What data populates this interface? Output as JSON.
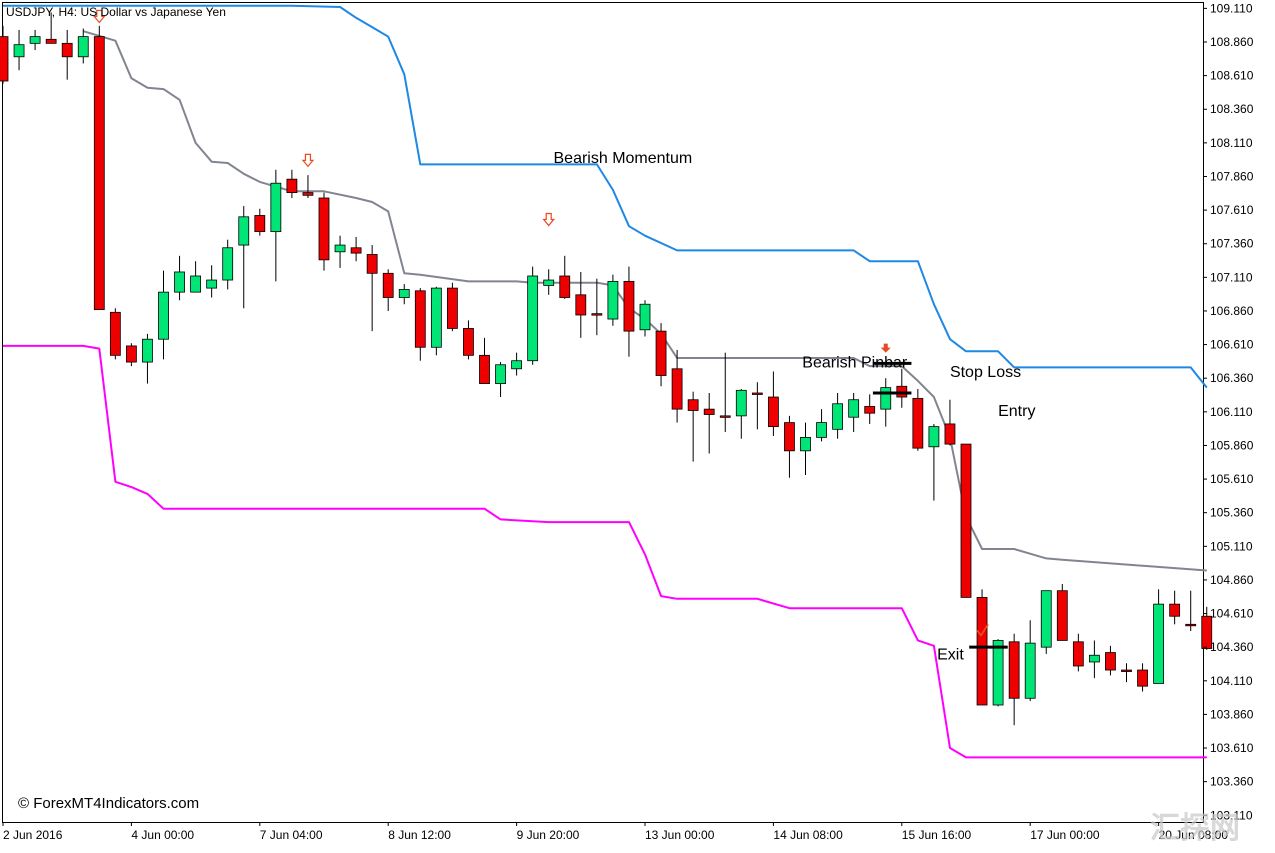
{
  "header": {
    "symbol_title": "USDJPY, H4:  US Dollar vs Japanese Yen"
  },
  "footer": {
    "copyright": "© ForexMT4Indicators.com",
    "watermark": "汇探网"
  },
  "colors": {
    "bull": "#00e676",
    "bear": "#ee0000",
    "outline": "#000000",
    "upper_band": "#1e88e5",
    "mid_band": "#808590",
    "lower_band": "#ff00ff",
    "signal_arrow": "#e8491d"
  },
  "chart_data": {
    "type": "candlestick",
    "symbol": "USDJPY",
    "timeframe": "H4",
    "y_ticks": [
      "109.110",
      "108.860",
      "108.610",
      "108.360",
      "108.110",
      "107.860",
      "107.610",
      "107.360",
      "107.110",
      "106.860",
      "106.610",
      "106.360",
      "106.110",
      "105.860",
      "105.610",
      "105.360",
      "105.110",
      "104.860",
      "104.610",
      "104.360",
      "104.110",
      "103.860",
      "103.610",
      "103.360",
      "103.110"
    ],
    "ylim": [
      103.06,
      109.15
    ],
    "x_ticks": [
      "2 Jun 2016",
      "4 Jun 00:00",
      "7 Jun 04:00",
      "8 Jun 12:00",
      "9 Jun 20:00",
      "13 Jun 00:00",
      "14 Jun 08:00",
      "15 Jun 16:00",
      "17 Jun 00:00",
      "20 Jun 08:00"
    ],
    "x_tick_bars": [
      0,
      8,
      16,
      24,
      32,
      40,
      48,
      56,
      64,
      72
    ],
    "candles": [
      [
        108.9,
        108.98,
        108.55,
        108.57
      ],
      [
        108.75,
        108.95,
        108.65,
        108.84
      ],
      [
        108.85,
        108.95,
        108.8,
        108.9
      ],
      [
        108.88,
        109.08,
        108.85,
        108.85
      ],
      [
        108.85,
        108.95,
        108.58,
        108.75
      ],
      [
        108.75,
        108.96,
        108.7,
        108.9
      ],
      [
        108.9,
        108.98,
        106.87,
        106.87
      ],
      [
        106.85,
        106.88,
        106.5,
        106.53
      ],
      [
        106.6,
        106.62,
        106.45,
        106.48
      ],
      [
        106.48,
        106.69,
        106.32,
        106.65
      ],
      [
        106.65,
        107.16,
        106.5,
        107.0
      ],
      [
        107.0,
        107.27,
        106.94,
        107.15
      ],
      [
        107.0,
        107.23,
        107.04,
        107.12
      ],
      [
        107.03,
        107.2,
        106.96,
        107.09
      ],
      [
        107.09,
        107.39,
        107.02,
        107.33
      ],
      [
        107.35,
        107.64,
        106.88,
        107.56
      ],
      [
        107.57,
        107.62,
        107.42,
        107.45
      ],
      [
        107.45,
        107.91,
        107.08,
        107.81
      ],
      [
        107.84,
        107.91,
        107.7,
        107.74
      ],
      [
        107.74,
        107.87,
        107.7,
        107.72
      ],
      [
        107.7,
        107.74,
        107.16,
        107.24
      ],
      [
        107.3,
        107.42,
        107.18,
        107.35
      ],
      [
        107.33,
        107.41,
        107.23,
        107.29
      ],
      [
        107.28,
        107.35,
        106.71,
        107.14
      ],
      [
        107.14,
        107.17,
        106.86,
        106.96
      ],
      [
        106.96,
        107.06,
        106.91,
        107.02
      ],
      [
        107.01,
        107.03,
        106.49,
        106.59
      ],
      [
        106.59,
        107.04,
        106.53,
        107.03
      ],
      [
        107.03,
        107.07,
        106.71,
        106.73
      ],
      [
        106.73,
        106.79,
        106.5,
        106.53
      ],
      [
        106.53,
        106.66,
        106.32,
        106.32
      ],
      [
        106.32,
        106.48,
        106.22,
        106.46
      ],
      [
        106.43,
        106.55,
        106.38,
        106.49
      ],
      [
        106.49,
        107.19,
        106.46,
        107.12
      ],
      [
        107.05,
        107.17,
        106.98,
        107.09
      ],
      [
        107.12,
        107.27,
        106.95,
        106.96
      ],
      [
        106.98,
        107.15,
        106.66,
        106.83
      ],
      [
        106.84,
        107.1,
        106.68,
        106.84
      ],
      [
        106.8,
        107.13,
        106.75,
        107.08
      ],
      [
        107.08,
        107.19,
        106.52,
        106.71
      ],
      [
        106.72,
        106.94,
        106.67,
        106.91
      ],
      [
        106.71,
        106.77,
        106.3,
        106.38
      ],
      [
        106.43,
        106.57,
        106.03,
        106.13
      ],
      [
        106.2,
        106.26,
        105.74,
        106.12
      ],
      [
        106.13,
        106.25,
        105.8,
        106.09
      ],
      [
        106.08,
        106.55,
        105.96,
        106.08
      ],
      [
        106.08,
        106.28,
        105.91,
        106.27
      ],
      [
        106.25,
        106.33,
        105.98,
        106.25
      ],
      [
        106.22,
        106.41,
        105.93,
        106.0
      ],
      [
        106.03,
        106.08,
        105.62,
        105.82
      ],
      [
        105.82,
        106.03,
        105.64,
        105.92
      ],
      [
        105.92,
        106.13,
        105.89,
        106.03
      ],
      [
        105.98,
        106.25,
        105.91,
        106.17
      ],
      [
        106.07,
        106.25,
        105.96,
        106.2
      ],
      [
        106.15,
        106.24,
        106.02,
        106.1
      ],
      [
        106.13,
        106.36,
        106.0,
        106.29
      ],
      [
        106.3,
        106.43,
        106.14,
        106.22
      ],
      [
        106.21,
        106.28,
        105.82,
        105.84
      ],
      [
        105.85,
        106.02,
        105.45,
        106.0
      ],
      [
        106.02,
        106.2,
        105.86,
        105.87
      ],
      [
        105.87,
        105.87,
        104.73,
        104.73
      ],
      [
        104.73,
        104.79,
        103.93,
        103.93
      ],
      [
        103.93,
        104.42,
        103.92,
        104.41
      ],
      [
        104.4,
        104.46,
        103.78,
        103.98
      ],
      [
        103.98,
        104.56,
        103.96,
        104.39
      ],
      [
        104.36,
        104.78,
        104.31,
        104.78
      ],
      [
        104.78,
        104.83,
        104.42,
        104.41
      ],
      [
        104.4,
        104.46,
        104.18,
        104.22
      ],
      [
        104.25,
        104.41,
        104.13,
        104.3
      ],
      [
        104.32,
        104.37,
        104.15,
        104.19
      ],
      [
        104.19,
        104.24,
        104.1,
        104.19
      ],
      [
        104.19,
        104.24,
        104.03,
        104.07
      ],
      [
        104.09,
        104.79,
        104.09,
        104.68
      ],
      [
        104.68,
        104.78,
        104.53,
        104.59
      ],
      [
        104.53,
        104.78,
        104.48,
        104.53
      ],
      [
        104.59,
        104.66,
        104.34,
        104.35
      ]
    ],
    "upper_band": [
      [
        0,
        109.13
      ],
      [
        18,
        109.13
      ],
      [
        21,
        109.12
      ],
      [
        22,
        109.04
      ],
      [
        24,
        108.9
      ],
      [
        25,
        108.62
      ],
      [
        26,
        107.95
      ],
      [
        37,
        107.95
      ],
      [
        38,
        107.76
      ],
      [
        39,
        107.49
      ],
      [
        40,
        107.42
      ],
      [
        42,
        107.31
      ],
      [
        53,
        107.31
      ],
      [
        54,
        107.23
      ],
      [
        57,
        107.23
      ],
      [
        58,
        106.91
      ],
      [
        59,
        106.65
      ],
      [
        60,
        106.56
      ],
      [
        62,
        106.56
      ],
      [
        63,
        106.44
      ],
      [
        74,
        106.44
      ],
      [
        75,
        106.29
      ]
    ],
    "mid_band": [
      [
        5,
        108.94
      ],
      [
        7,
        108.87
      ],
      [
        8,
        108.59
      ],
      [
        9,
        108.52
      ],
      [
        10,
        108.51
      ],
      [
        11,
        108.43
      ],
      [
        12,
        108.11
      ],
      [
        13,
        107.97
      ],
      [
        14,
        107.96
      ],
      [
        15,
        107.88
      ],
      [
        16,
        107.82
      ],
      [
        18,
        107.75
      ],
      [
        20,
        107.75
      ],
      [
        22,
        107.7
      ],
      [
        23,
        107.67
      ],
      [
        24,
        107.6
      ],
      [
        25,
        107.14
      ],
      [
        26,
        107.13
      ],
      [
        29,
        107.08
      ],
      [
        32,
        107.08
      ],
      [
        33,
        107.07
      ],
      [
        36,
        107.07
      ],
      [
        37,
        107.07
      ],
      [
        38,
        107.05
      ],
      [
        39,
        106.88
      ],
      [
        40,
        106.8
      ],
      [
        41,
        106.69
      ],
      [
        42,
        106.51
      ],
      [
        43,
        106.51
      ],
      [
        53,
        106.51
      ],
      [
        54,
        106.45
      ],
      [
        56,
        106.45
      ],
      [
        57,
        106.34
      ],
      [
        58,
        106.22
      ],
      [
        59,
        105.92
      ],
      [
        60,
        105.33
      ],
      [
        61,
        105.09
      ],
      [
        63,
        105.09
      ],
      [
        65,
        105.02
      ],
      [
        66,
        105.01
      ],
      [
        75,
        104.93
      ]
    ],
    "lower_band": [
      [
        0,
        106.6
      ],
      [
        5,
        106.6
      ],
      [
        6,
        106.58
      ],
      [
        7,
        105.59
      ],
      [
        8,
        105.55
      ],
      [
        9,
        105.5
      ],
      [
        10,
        105.39
      ],
      [
        30,
        105.39
      ],
      [
        31,
        105.31
      ],
      [
        34,
        105.29
      ],
      [
        39,
        105.29
      ],
      [
        40,
        105.05
      ],
      [
        41,
        104.74
      ],
      [
        42,
        104.72
      ],
      [
        47,
        104.72
      ],
      [
        49,
        104.65
      ],
      [
        56,
        104.65
      ],
      [
        57,
        104.41
      ],
      [
        58,
        104.37
      ],
      [
        59,
        103.61
      ],
      [
        60,
        103.54
      ],
      [
        75,
        103.54
      ]
    ],
    "signal_arrows": [
      [
        6,
        109.05
      ],
      [
        19,
        107.98
      ],
      [
        34,
        107.54
      ]
    ],
    "pinbar_arrow": [
      55,
      106.58
    ],
    "exit_check": [
      61,
      104.47
    ],
    "levels": [
      {
        "from": 54.2,
        "to": 56.6,
        "y": 106.47
      },
      {
        "from": 54.2,
        "to": 56.6,
        "y": 106.25
      },
      {
        "from": 60.2,
        "to": 62.6,
        "y": 104.36
      }
    ],
    "annotations": [
      {
        "text": "Bearish Momentum",
        "at": [
          34.3,
          107.96
        ]
      },
      {
        "text": "Bearish Pinbar",
        "at": [
          49.8,
          106.44
        ]
      },
      {
        "text": "Stop Loss",
        "at": [
          59.0,
          106.37
        ]
      },
      {
        "text": "Entry",
        "at": [
          62.0,
          106.08
        ]
      },
      {
        "text": "Exit",
        "at": [
          58.2,
          104.27
        ]
      }
    ]
  }
}
